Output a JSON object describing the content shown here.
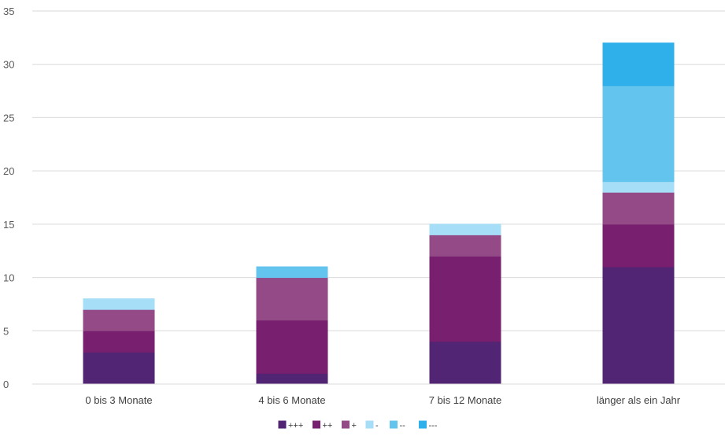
{
  "chart_data": {
    "type": "bar",
    "stacked": true,
    "categories": [
      "0 bis 3 Monate",
      "4 bis 6 Monate",
      "7 bis 12 Monate",
      "länger als ein Jahr"
    ],
    "series": [
      {
        "name": "+++",
        "color": "#522474",
        "values": [
          3,
          1,
          4,
          11
        ]
      },
      {
        "name": "++",
        "color": "#781f6f",
        "values": [
          2,
          5,
          8,
          4
        ]
      },
      {
        "name": "+",
        "color": "#934a86",
        "values": [
          2,
          4,
          2,
          3
        ]
      },
      {
        "name": "-",
        "color": "#a7def7",
        "values": [
          1,
          0,
          1,
          1
        ]
      },
      {
        "name": "--",
        "color": "#63c4ee",
        "values": [
          0,
          1,
          0,
          9
        ]
      },
      {
        "name": "---",
        "color": "#30b0ea",
        "values": [
          0,
          0,
          0,
          4
        ]
      }
    ],
    "ylim": [
      0,
      35
    ],
    "yticks": [
      "0",
      "5",
      "10",
      "15",
      "20",
      "25",
      "30",
      "35"
    ],
    "grid": true,
    "legend_position": "bottom"
  }
}
